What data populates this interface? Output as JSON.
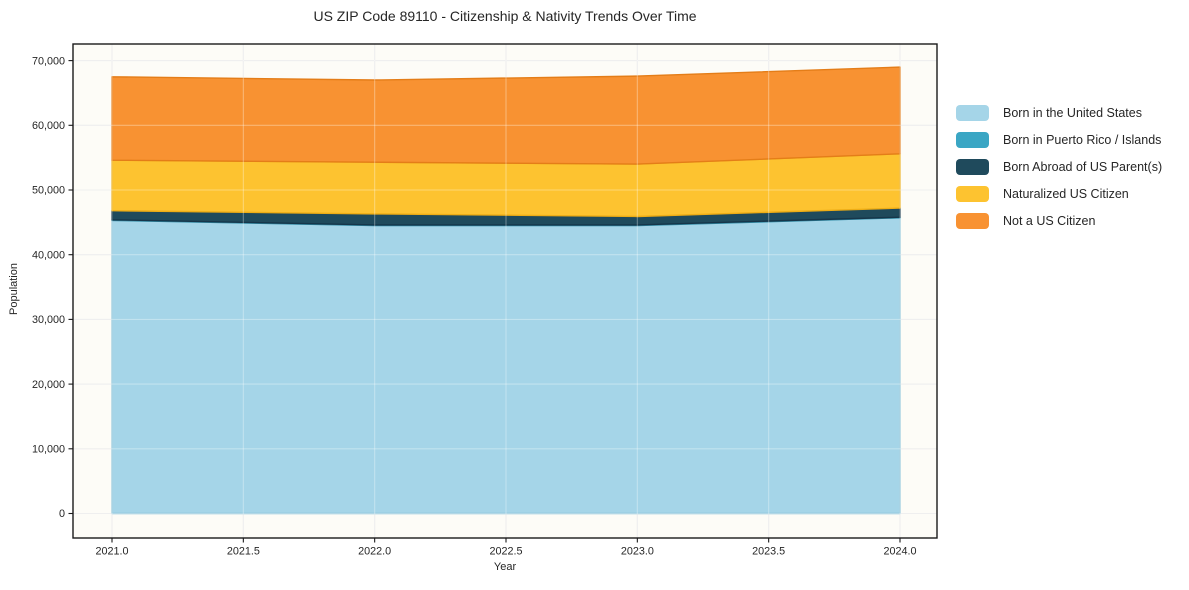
{
  "chart_data": {
    "type": "area",
    "stacked": true,
    "title": "US ZIP Code 89110 - Citizenship & Nativity Trends Over Time",
    "xlabel": "Year",
    "ylabel": "Population",
    "x": [
      2021,
      2022,
      2023,
      2024
    ],
    "series": [
      {
        "name": "Born in the United States",
        "color": "#a5d5e8",
        "edge_color": "#8cc3da",
        "values": [
          45300,
          44500,
          44500,
          45700
        ]
      },
      {
        "name": "Born in Puerto Rico / Islands",
        "color": "#3aa6c4",
        "edge_color": "#2f8aa4",
        "values": [
          100,
          100,
          100,
          100
        ]
      },
      {
        "name": "Born Abroad of US Parent(s)",
        "color": "#1f4a5c",
        "edge_color": "#16364a",
        "values": [
          1400,
          1700,
          1300,
          1400
        ]
      },
      {
        "name": "Naturalized US Citizen",
        "color": "#fdc330",
        "edge_color": "#eead15",
        "values": [
          7800,
          8000,
          8100,
          8400
        ]
      },
      {
        "name": "Not a US Citizen",
        "color": "#f89232",
        "edge_color": "#e47d18",
        "values": [
          12900,
          12700,
          13600,
          13400
        ]
      }
    ],
    "totals_by_year": [
      67500,
      67000,
      67600,
      69000
    ],
    "x_ticks": [
      2021.0,
      2021.5,
      2022.0,
      2022.5,
      2023.0,
      2023.5,
      2024.0
    ],
    "x_tick_labels": [
      "2021.0",
      "2021.5",
      "2022.0",
      "2022.5",
      "2023.0",
      "2023.5",
      "2024.0"
    ],
    "y_ticks": [
      0,
      10000,
      20000,
      30000,
      40000,
      50000,
      60000,
      70000
    ],
    "y_tick_labels": [
      "0",
      "10,000",
      "20,000",
      "30,000",
      "40,000",
      "50,000",
      "60,000",
      "70,000"
    ],
    "xlim": [
      2020.85,
      2024.14
    ],
    "ylim": [
      -3800,
      72600
    ],
    "grid": true,
    "legend_position": "outside-center-right",
    "colors": {
      "axis_text": "#262626",
      "spine": "#1a1a1a",
      "gridline": "#e8e8e8",
      "plot_background": "#fdfcf7",
      "figure_background": "#ffffff"
    }
  }
}
